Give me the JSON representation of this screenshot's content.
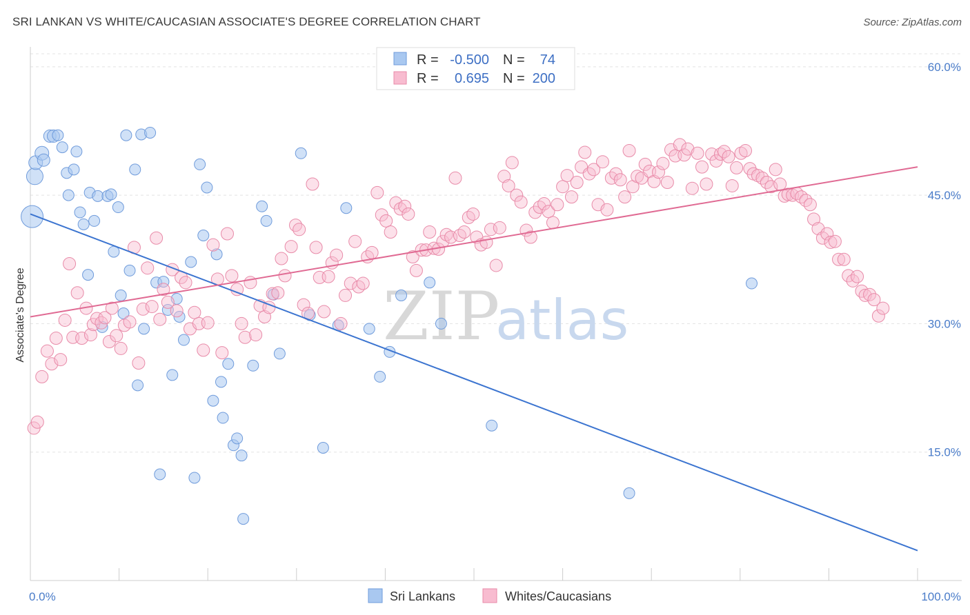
{
  "title": "SRI LANKAN VS WHITE/CAUCASIAN ASSOCIATE'S DEGREE CORRELATION CHART",
  "source": "Source: ZipAtlas.com",
  "watermark": {
    "zip": "ZIP",
    "atlas": "atlas"
  },
  "legend": {
    "r_label": "R =",
    "n_label": "N =",
    "entries": [
      {
        "r": "-0.500",
        "n": "74",
        "color": "#a9c8f0",
        "stroke": "#6f9bdb"
      },
      {
        "r": "0.695",
        "n": "200",
        "color": "#f8bcd0",
        "stroke": "#e88aa8"
      }
    ]
  },
  "chart_data": {
    "type": "scatter",
    "ylabel": "Associate's Degree",
    "xlim": [
      0,
      100
    ],
    "ylim": [
      0,
      62
    ],
    "y_ticks": [
      15,
      30,
      45,
      60
    ],
    "y_tick_labels": [
      "15.0%",
      "30.0%",
      "45.0%",
      "60.0%"
    ],
    "x_tick_labels": [
      "0.0%",
      "100.0%"
    ],
    "grid": true,
    "series": [
      {
        "name": "Sri Lankans",
        "color": "#a9c8f0",
        "stroke": "#6f9bdb",
        "line_color": "#3b74d0",
        "trend": [
          [
            0,
            42.8
          ],
          [
            100,
            3.5
          ]
        ],
        "points": [
          [
            0.2,
            42.5,
            16
          ],
          [
            0.5,
            47.2,
            12
          ],
          [
            0.6,
            48.8,
            10
          ],
          [
            1.3,
            49.9,
            10
          ],
          [
            1.5,
            49.1,
            9
          ],
          [
            2.2,
            51.9,
            9
          ],
          [
            2.6,
            51.9,
            9
          ],
          [
            3.1,
            52.0,
            8
          ],
          [
            3.6,
            50.6,
            8
          ],
          [
            4.1,
            47.6,
            8
          ],
          [
            4.3,
            45.0,
            8
          ],
          [
            4.9,
            48.0,
            8
          ],
          [
            5.2,
            50.1,
            8
          ],
          [
            5.6,
            43.0,
            8
          ],
          [
            6.0,
            41.6,
            8
          ],
          [
            6.5,
            35.7,
            8
          ],
          [
            6.7,
            45.3,
            8
          ],
          [
            7.2,
            42.0,
            8
          ],
          [
            7.6,
            44.9,
            8
          ],
          [
            8.1,
            29.6,
            8
          ],
          [
            8.7,
            44.9,
            8
          ],
          [
            9.1,
            45.1,
            8
          ],
          [
            9.4,
            38.4,
            8
          ],
          [
            9.9,
            43.6,
            8
          ],
          [
            10.2,
            33.3,
            8
          ],
          [
            10.5,
            31.2,
            8
          ],
          [
            10.8,
            52.0,
            8
          ],
          [
            11.2,
            36.2,
            8
          ],
          [
            11.8,
            48.0,
            8
          ],
          [
            12.1,
            22.8,
            8
          ],
          [
            12.5,
            52.1,
            8
          ],
          [
            12.8,
            29.4,
            8
          ],
          [
            13.5,
            52.3,
            8
          ],
          [
            14.2,
            34.8,
            8
          ],
          [
            14.6,
            12.4,
            8
          ],
          [
            15.0,
            34.9,
            8
          ],
          [
            15.5,
            31.6,
            8
          ],
          [
            16.0,
            24.0,
            8
          ],
          [
            16.5,
            32.9,
            8
          ],
          [
            16.8,
            30.8,
            8
          ],
          [
            17.3,
            28.1,
            8
          ],
          [
            18.1,
            37.2,
            8
          ],
          [
            18.5,
            12.0,
            8
          ],
          [
            19.1,
            48.6,
            8
          ],
          [
            19.5,
            40.3,
            8
          ],
          [
            19.9,
            45.9,
            8
          ],
          [
            20.6,
            21.0,
            8
          ],
          [
            21.0,
            38.1,
            8
          ],
          [
            21.5,
            23.2,
            8
          ],
          [
            21.7,
            19.0,
            8
          ],
          [
            22.3,
            25.3,
            8
          ],
          [
            22.9,
            15.8,
            8
          ],
          [
            23.3,
            16.6,
            8
          ],
          [
            23.8,
            14.6,
            8
          ],
          [
            24.0,
            7.2,
            8
          ],
          [
            25.1,
            25.1,
            8
          ],
          [
            26.1,
            43.7,
            8
          ],
          [
            26.6,
            42.0,
            8
          ],
          [
            27.4,
            33.4,
            8
          ],
          [
            28.1,
            26.5,
            8
          ],
          [
            30.5,
            49.9,
            8
          ],
          [
            31.5,
            31.0,
            8
          ],
          [
            33.0,
            15.5,
            8
          ],
          [
            34.7,
            29.8,
            8
          ],
          [
            35.6,
            43.5,
            8
          ],
          [
            38.2,
            29.4,
            8
          ],
          [
            39.4,
            23.8,
            8
          ],
          [
            40.5,
            26.7,
            8
          ],
          [
            41.8,
            33.3,
            8
          ],
          [
            45.0,
            34.8,
            8
          ],
          [
            46.3,
            30.0,
            8
          ],
          [
            52.0,
            18.1,
            8
          ],
          [
            67.5,
            10.2,
            8
          ],
          [
            81.3,
            34.7,
            8
          ]
        ]
      },
      {
        "name": "Whites/Caucasians",
        "color": "#f8bcd0",
        "stroke": "#e88aa8",
        "line_color": "#e06a93",
        "trend": [
          [
            0,
            30.8
          ],
          [
            100,
            48.3
          ]
        ],
        "points": [
          [
            0.4,
            17.8
          ],
          [
            0.8,
            18.5
          ],
          [
            1.3,
            23.8
          ],
          [
            1.9,
            26.8
          ],
          [
            2.4,
            25.3
          ],
          [
            2.9,
            28.3
          ],
          [
            3.4,
            25.8
          ],
          [
            3.9,
            30.4
          ],
          [
            4.4,
            37.0
          ],
          [
            4.8,
            28.4
          ],
          [
            5.3,
            33.6
          ],
          [
            5.8,
            28.3
          ],
          [
            6.3,
            31.8
          ],
          [
            6.8,
            28.7
          ],
          [
            7.1,
            29.9
          ],
          [
            7.5,
            30.6
          ],
          [
            8.0,
            30.1
          ],
          [
            8.4,
            30.7
          ],
          [
            8.9,
            27.9
          ],
          [
            9.2,
            31.8
          ],
          [
            9.7,
            28.6
          ],
          [
            10.2,
            27.1
          ],
          [
            10.6,
            29.8
          ],
          [
            11.2,
            30.2
          ],
          [
            11.7,
            38.9
          ],
          [
            12.2,
            25.4
          ],
          [
            12.7,
            31.7
          ],
          [
            13.2,
            36.5
          ],
          [
            13.7,
            32.0
          ],
          [
            14.2,
            40.0
          ],
          [
            14.6,
            30.5
          ],
          [
            15.0,
            34.0
          ],
          [
            15.5,
            32.5
          ],
          [
            16.0,
            36.3
          ],
          [
            16.5,
            31.5
          ],
          [
            17.0,
            35.4
          ],
          [
            17.5,
            34.8
          ],
          [
            18.0,
            29.4
          ],
          [
            18.5,
            31.3
          ],
          [
            19.0,
            30.0
          ],
          [
            19.5,
            26.9
          ],
          [
            20.0,
            30.1
          ],
          [
            20.6,
            39.2
          ],
          [
            21.1,
            35.2
          ],
          [
            21.6,
            26.6
          ],
          [
            22.2,
            40.5
          ],
          [
            22.7,
            35.6
          ],
          [
            23.3,
            34.0
          ],
          [
            23.8,
            30.0
          ],
          [
            24.2,
            28.4
          ],
          [
            24.8,
            34.8
          ],
          [
            25.4,
            28.7
          ],
          [
            25.9,
            32.1
          ],
          [
            26.4,
            30.8
          ],
          [
            26.9,
            31.9
          ],
          [
            27.3,
            33.5
          ],
          [
            27.9,
            33.6
          ],
          [
            28.3,
            37.6
          ],
          [
            28.7,
            35.6
          ],
          [
            29.4,
            39.0
          ],
          [
            29.9,
            41.5
          ],
          [
            30.3,
            41.0
          ],
          [
            30.8,
            32.2
          ],
          [
            31.3,
            31.2
          ],
          [
            31.8,
            46.3
          ],
          [
            32.2,
            38.9
          ],
          [
            32.6,
            35.4
          ],
          [
            33.1,
            31.4
          ],
          [
            33.6,
            35.5
          ],
          [
            34.0,
            37.1
          ],
          [
            34.5,
            38.0
          ],
          [
            35.0,
            30.0
          ],
          [
            35.5,
            33.3
          ],
          [
            36.1,
            34.7
          ],
          [
            36.6,
            39.6
          ],
          [
            37.0,
            34.3
          ],
          [
            37.5,
            34.7
          ],
          [
            38.0,
            37.8
          ],
          [
            38.5,
            38.3
          ],
          [
            39.1,
            45.3
          ],
          [
            39.6,
            42.7
          ],
          [
            40.1,
            42.0
          ],
          [
            40.6,
            40.7
          ],
          [
            41.2,
            44.1
          ],
          [
            41.7,
            43.4
          ],
          [
            42.2,
            43.7
          ],
          [
            42.6,
            42.8
          ],
          [
            43.1,
            37.8
          ],
          [
            43.5,
            36.2
          ],
          [
            44.1,
            38.6
          ],
          [
            44.6,
            38.6
          ],
          [
            45.0,
            40.7
          ],
          [
            45.5,
            38.8
          ],
          [
            46.0,
            38.7
          ],
          [
            46.5,
            39.6
          ],
          [
            46.9,
            40.4
          ],
          [
            47.4,
            40.1
          ],
          [
            47.9,
            47.0
          ],
          [
            48.4,
            40.3
          ],
          [
            48.9,
            40.7
          ],
          [
            49.4,
            42.4
          ],
          [
            49.9,
            42.8
          ],
          [
            50.3,
            40.1
          ],
          [
            50.8,
            39.2
          ],
          [
            51.4,
            39.5
          ],
          [
            51.9,
            41.0
          ],
          [
            52.5,
            36.8
          ],
          [
            52.9,
            41.2
          ],
          [
            53.4,
            47.2
          ],
          [
            53.9,
            46.1
          ],
          [
            54.3,
            48.8
          ],
          [
            54.8,
            45.0
          ],
          [
            55.3,
            44.2
          ],
          [
            55.9,
            40.9
          ],
          [
            56.4,
            40.1
          ],
          [
            56.9,
            43.0
          ],
          [
            57.4,
            43.6
          ],
          [
            57.9,
            44.0
          ],
          [
            58.4,
            43.1
          ],
          [
            58.9,
            41.8
          ],
          [
            59.4,
            43.9
          ],
          [
            60.0,
            46.0
          ],
          [
            60.5,
            47.3
          ],
          [
            61.0,
            44.8
          ],
          [
            61.6,
            46.5
          ],
          [
            62.1,
            48.3
          ],
          [
            62.5,
            50.0
          ],
          [
            63.0,
            47.5
          ],
          [
            63.5,
            48.0
          ],
          [
            64.0,
            43.9
          ],
          [
            64.5,
            48.9
          ],
          [
            65.0,
            43.3
          ],
          [
            65.5,
            47.0
          ],
          [
            66.0,
            47.5
          ],
          [
            66.5,
            46.8
          ],
          [
            67.0,
            44.8
          ],
          [
            67.5,
            50.2
          ],
          [
            67.9,
            46.0
          ],
          [
            68.4,
            47.2
          ],
          [
            68.9,
            47.0
          ],
          [
            69.3,
            48.6
          ],
          [
            69.8,
            47.8
          ],
          [
            70.3,
            46.6
          ],
          [
            70.8,
            47.7
          ],
          [
            71.3,
            48.7
          ],
          [
            71.8,
            46.5
          ],
          [
            72.2,
            50.3
          ],
          [
            72.7,
            49.6
          ],
          [
            73.2,
            50.9
          ],
          [
            73.7,
            49.7
          ],
          [
            74.1,
            50.4
          ],
          [
            74.6,
            45.8
          ],
          [
            75.2,
            49.9
          ],
          [
            75.7,
            48.3
          ],
          [
            76.2,
            46.3
          ],
          [
            76.8,
            49.8
          ],
          [
            77.3,
            49.0
          ],
          [
            77.8,
            49.8
          ],
          [
            78.2,
            50.1
          ],
          [
            78.7,
            49.5
          ],
          [
            79.1,
            46.1
          ],
          [
            79.6,
            48.2
          ],
          [
            80.1,
            49.9
          ],
          [
            80.6,
            50.2
          ],
          [
            81.1,
            48.1
          ],
          [
            81.5,
            47.5
          ],
          [
            82.0,
            47.3
          ],
          [
            82.5,
            47.0
          ],
          [
            83.0,
            46.5
          ],
          [
            83.5,
            46.0
          ],
          [
            84.0,
            48.0
          ],
          [
            84.5,
            46.3
          ],
          [
            85.0,
            44.9
          ],
          [
            85.4,
            45.1
          ],
          [
            85.9,
            45.0
          ],
          [
            86.4,
            45.2
          ],
          [
            86.9,
            44.8
          ],
          [
            87.4,
            44.4
          ],
          [
            87.9,
            43.9
          ],
          [
            88.3,
            42.2
          ],
          [
            88.8,
            41.1
          ],
          [
            89.3,
            40.0
          ],
          [
            89.8,
            40.5
          ],
          [
            90.2,
            39.5
          ],
          [
            90.7,
            39.6
          ],
          [
            91.1,
            37.5
          ],
          [
            91.7,
            37.5
          ],
          [
            92.2,
            35.6
          ],
          [
            92.7,
            35.0
          ],
          [
            93.2,
            35.5
          ],
          [
            93.7,
            33.8
          ],
          [
            94.1,
            33.3
          ],
          [
            94.6,
            33.4
          ],
          [
            95.1,
            32.8
          ],
          [
            95.6,
            30.9
          ],
          [
            96.1,
            31.8
          ]
        ]
      }
    ]
  }
}
